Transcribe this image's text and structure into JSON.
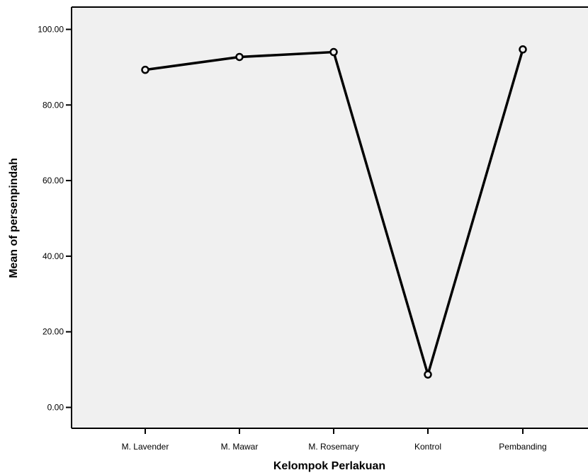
{
  "chart_data": {
    "type": "line",
    "categories": [
      "M. Lavender",
      "M. Mawar",
      "M. Rosemary",
      "Kontrol",
      "Pembanding"
    ],
    "values": [
      89.3,
      92.7,
      94.0,
      8.7,
      94.7
    ],
    "xlabel": "Kelompok Perlakuan",
    "ylabel": "Mean of persenpindah",
    "ylim": [
      0,
      100
    ],
    "yticks": [
      "0.00",
      "20.00",
      "40.00",
      "60.00",
      "80.00",
      "100.00"
    ],
    "grid": false,
    "legend": "none",
    "colors": {
      "plot_background": "#f0f0f0",
      "line": "#000000",
      "marker_fill": "#f0f0f0",
      "axis": "#000000"
    }
  }
}
